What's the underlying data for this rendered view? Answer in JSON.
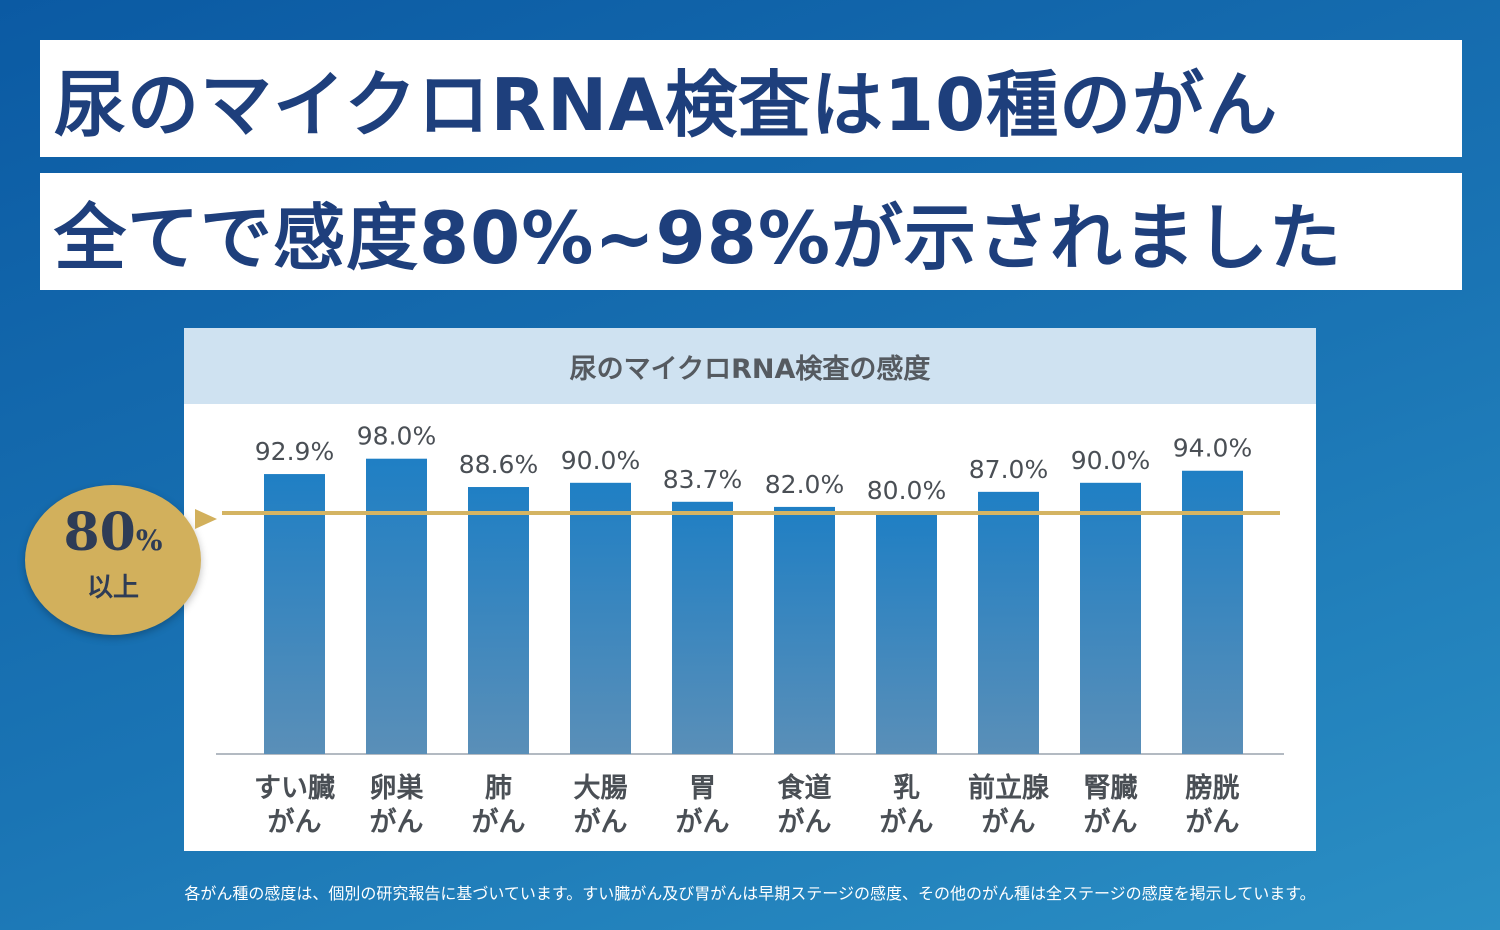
{
  "headline": {
    "line1": "尿のマイクロRNA検査は10種のがん",
    "line2": "全てで感度80%~98%が示されました"
  },
  "badge": {
    "value": "80",
    "unit": "%",
    "sub": "以上"
  },
  "footnote": "各がん種の感度は、個別の研究報告に基づいています。すい臓がん及び胃がんは早期ステージの感度、その他のがん種は全ステージの感度を掲示しています。",
  "colors": {
    "bar_top": "#1f7fc4",
    "bar_bottom": "#5a8fb8",
    "threshold": "#d4b463",
    "title": "#1e3f7c",
    "badge": "#d2b05c"
  },
  "chart_data": {
    "type": "bar",
    "title": "尿のマイクロRNA検査の感度",
    "categories": [
      [
        "すい臓",
        "がん"
      ],
      [
        "卵巣",
        "がん"
      ],
      [
        "肺",
        "がん"
      ],
      [
        "大腸",
        "がん"
      ],
      [
        "胃",
        "がん"
      ],
      [
        "食道",
        "がん"
      ],
      [
        "乳",
        "がん"
      ],
      [
        "前立腺",
        "がん"
      ],
      [
        "腎臓",
        "がん"
      ],
      [
        "膀胱",
        "がん"
      ]
    ],
    "values": [
      92.9,
      98.0,
      88.6,
      90.0,
      83.7,
      82.0,
      80.0,
      87.0,
      90.0,
      94.0
    ],
    "labels": [
      "92.9%",
      "98.0%",
      "88.6%",
      "90.0%",
      "83.7%",
      "82.0%",
      "80.0%",
      "87.0%",
      "90.0%",
      "94.0%"
    ],
    "threshold": 80,
    "ylim": [
      0,
      100
    ],
    "xlabel": "",
    "ylabel": "",
    "grid": false,
    "legend": "none"
  }
}
